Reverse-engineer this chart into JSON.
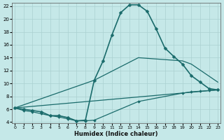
{
  "xlabel": "Humidex (Indice chaleur)",
  "bg_color": "#c5e8e8",
  "grid_color": "#aad0d0",
  "line_color": "#1a6b6b",
  "xlim": [
    -0.3,
    23.3
  ],
  "ylim": [
    3.8,
    22.5
  ],
  "xticks": [
    0,
    1,
    2,
    3,
    4,
    5,
    6,
    7,
    8,
    9,
    10,
    11,
    12,
    13,
    14,
    15,
    16,
    17,
    18,
    19,
    20,
    21,
    22,
    23
  ],
  "yticks": [
    4,
    6,
    8,
    10,
    12,
    14,
    16,
    18,
    20,
    22
  ],
  "series": [
    {
      "x": [
        0,
        1,
        2,
        3,
        4,
        5,
        6,
        7,
        8,
        9,
        10,
        11,
        12,
        13,
        14,
        15,
        16,
        17,
        18,
        19,
        20,
        21,
        22,
        23
      ],
      "y": [
        6.2,
        6.0,
        5.8,
        5.6,
        5.0,
        5.0,
        4.7,
        4.2,
        4.3,
        10.5,
        13.5,
        17.5,
        21.0,
        22.2,
        22.2,
        21.2,
        18.5,
        15.5,
        14.2,
        13.0,
        11.2,
        10.2,
        9.2,
        9.0
      ],
      "marker": "D",
      "markersize": 2.5,
      "linewidth": 1.2
    },
    {
      "x": [
        0,
        9,
        14,
        19,
        20,
        23
      ],
      "y": [
        6.2,
        10.5,
        14.0,
        13.5,
        13.0,
        10.2
      ],
      "marker": null,
      "linewidth": 0.9
    },
    {
      "x": [
        0,
        23
      ],
      "y": [
        6.2,
        9.0
      ],
      "marker": null,
      "linewidth": 0.9
    },
    {
      "x": [
        0,
        1,
        2,
        3,
        4,
        5,
        6,
        7,
        8,
        9,
        14,
        19,
        20,
        21,
        22,
        23
      ],
      "y": [
        6.2,
        5.8,
        5.6,
        5.3,
        5.0,
        4.8,
        4.5,
        4.2,
        4.2,
        4.3,
        7.2,
        8.5,
        8.7,
        8.8,
        8.9,
        9.0
      ],
      "marker": "D",
      "markersize": 2.0,
      "linewidth": 0.9
    }
  ]
}
